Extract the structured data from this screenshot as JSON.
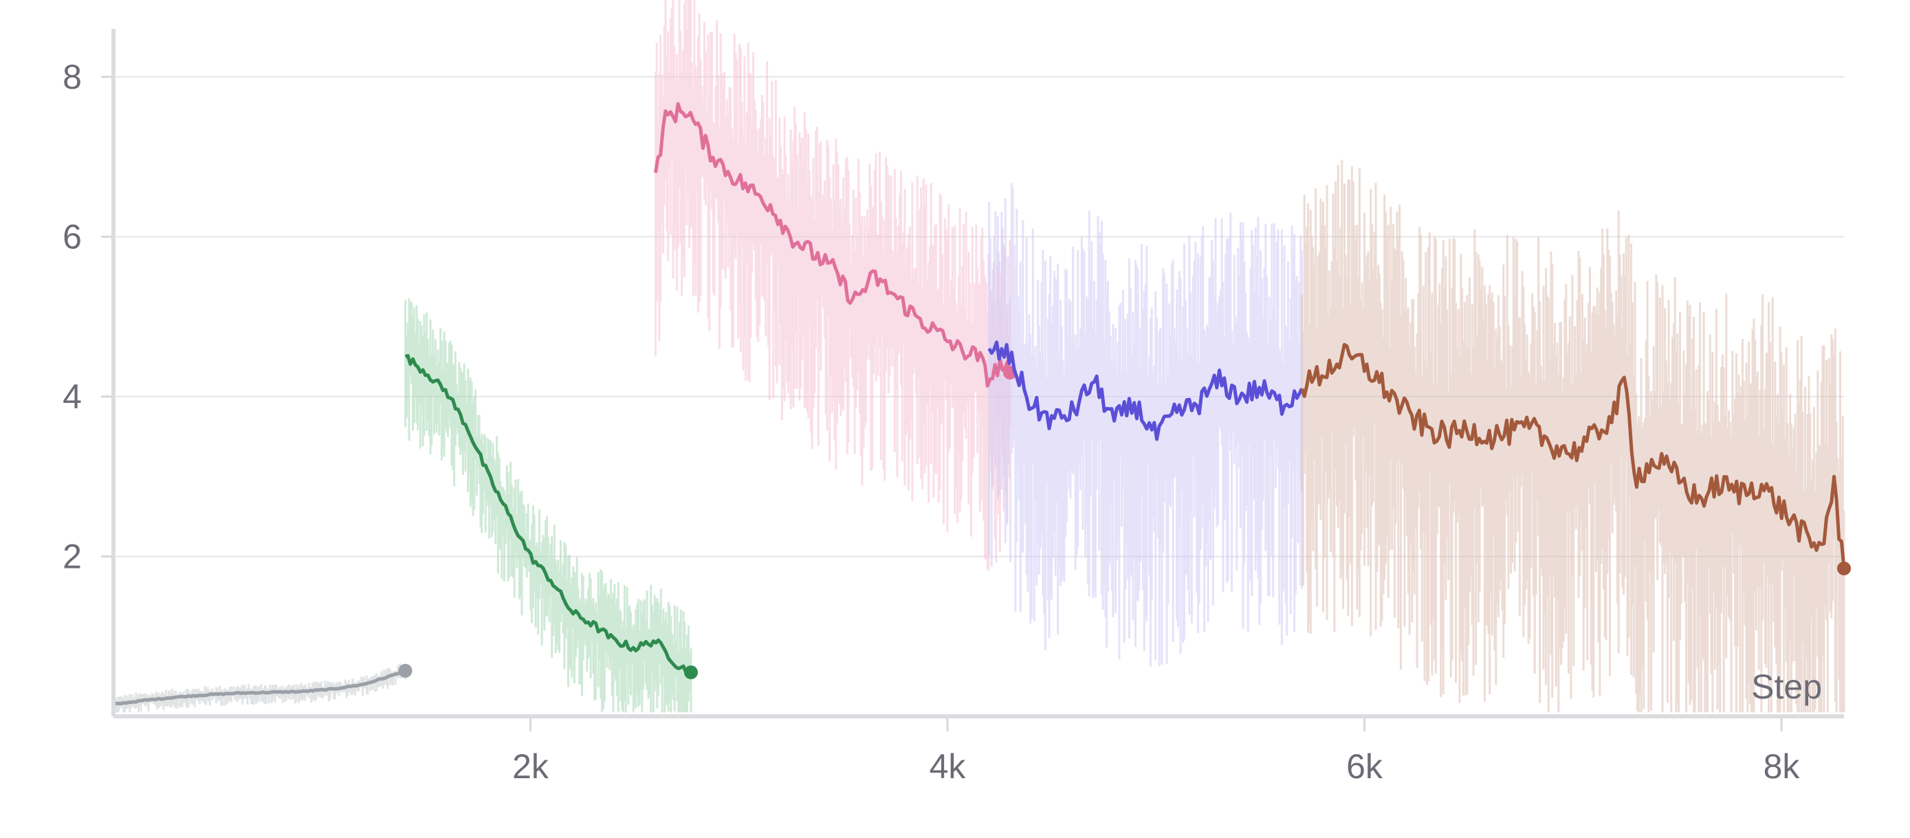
{
  "chart_data": {
    "type": "line",
    "title": "",
    "xlabel": "Step",
    "ylabel": "",
    "xlim": [
      0,
      8300
    ],
    "ylim": [
      0,
      8.6
    ],
    "x_ticks": [
      {
        "value": 2000,
        "label": "2k"
      },
      {
        "value": 4000,
        "label": "4k"
      },
      {
        "value": 6000,
        "label": "6k"
      },
      {
        "value": 8000,
        "label": "8k"
      }
    ],
    "y_ticks": [
      {
        "value": 2,
        "label": "2"
      },
      {
        "value": 4,
        "label": "4"
      },
      {
        "value": 6,
        "label": "6"
      },
      {
        "value": 8,
        "label": "8"
      }
    ],
    "grid": "horizontal",
    "legend": "none",
    "series": [
      {
        "color": "#9aa0a6",
        "raw_color": "#c8ccd0",
        "noise": 0.08,
        "end_marker": true,
        "x": [
          0,
          150,
          300,
          450,
          600,
          750,
          900,
          1050,
          1200,
          1300,
          1400
        ],
        "values": [
          0.15,
          0.2,
          0.24,
          0.27,
          0.29,
          0.3,
          0.31,
          0.34,
          0.4,
          0.48,
          0.57
        ]
      },
      {
        "color": "#2e8b4e",
        "raw_color": "#a7d7b6",
        "noise": 0.55,
        "end_marker": true,
        "x": [
          1400,
          1500,
          1600,
          1700,
          1800,
          1900,
          2000,
          2100,
          2200,
          2300,
          2400,
          2500,
          2600,
          2700,
          2770
        ],
        "values": [
          4.5,
          4.3,
          4.05,
          3.6,
          3.0,
          2.5,
          2.0,
          1.7,
          1.3,
          1.15,
          0.95,
          0.85,
          0.95,
          0.65,
          0.55
        ]
      },
      {
        "color": "#e0709a",
        "raw_color": "#f6c2d3",
        "noise": 1.3,
        "end_marker": true,
        "x": [
          2600,
          2650,
          2750,
          2850,
          2950,
          3050,
          3150,
          3250,
          3350,
          3450,
          3550,
          3650,
          3750,
          3850,
          3950,
          4050,
          4150,
          4200,
          4250,
          4300
        ],
        "values": [
          6.8,
          7.5,
          7.6,
          7.1,
          6.8,
          6.6,
          6.4,
          6.0,
          5.8,
          5.6,
          5.2,
          5.5,
          5.25,
          5.0,
          4.8,
          4.6,
          4.5,
          4.2,
          4.4,
          4.3
        ]
      },
      {
        "color": "#5a4fd6",
        "raw_color": "#cfcaf6",
        "noise": 1.6,
        "end_marker": false,
        "x": [
          4200,
          4300,
          4400,
          4500,
          4600,
          4700,
          4800,
          4900,
          5000,
          5100,
          5200,
          5300,
          5400,
          5500,
          5600,
          5700
        ],
        "values": [
          4.6,
          4.5,
          3.9,
          3.7,
          3.8,
          4.2,
          3.7,
          3.9,
          3.5,
          3.8,
          3.9,
          4.2,
          4.0,
          4.1,
          3.9,
          4.1
        ]
      },
      {
        "color": "#a3593c",
        "raw_color": "#dcc0b2",
        "noise": 1.8,
        "end_marker": true,
        "x": [
          5700,
          5800,
          5900,
          6000,
          6100,
          6200,
          6300,
          6400,
          6500,
          6600,
          6700,
          6800,
          6900,
          7000,
          7100,
          7200,
          7250,
          7300,
          7400,
          7500,
          7600,
          7700,
          7800,
          7900,
          8000,
          8100,
          8150,
          8200,
          8250,
          8300
        ],
        "values": [
          4.1,
          4.3,
          4.5,
          4.4,
          4.1,
          3.8,
          3.6,
          3.5,
          3.6,
          3.5,
          3.55,
          3.6,
          3.4,
          3.3,
          3.5,
          3.8,
          4.2,
          3.0,
          3.2,
          3.0,
          2.7,
          2.9,
          2.8,
          2.9,
          2.6,
          2.3,
          2.1,
          2.2,
          2.9,
          1.85
        ]
      }
    ]
  }
}
